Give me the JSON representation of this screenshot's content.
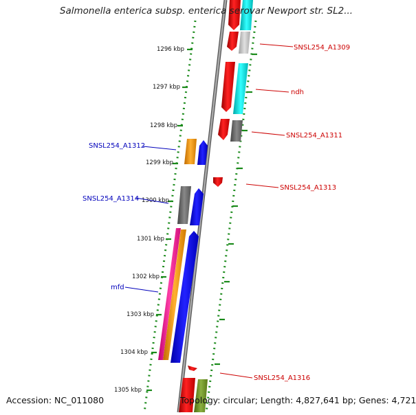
{
  "title": "Salmonella enterica subsp. enterica serovar Newport str. SL2...",
  "footer": {
    "accession": "Accession: NC_011080",
    "summary": "Topology: circular; Length: 4,827,641 bp; Genes: 4,721"
  },
  "scale_labels": [
    "1296 kbp",
    "1297 kbp",
    "1298 kbp",
    "1299 kbp",
    "1300 kbp",
    "1301 kbp",
    "1302 kbp",
    "1303 kbp",
    "1304 kbp",
    "1305 kbp"
  ],
  "gene_labels": {
    "a1309": "SNSL254_A1309",
    "ndh": "ndh",
    "a1311": "SNSL254_A1311",
    "a1313": "SNSL254_A1313",
    "a1316": "SNSL254_A1316",
    "a1312": "SNSL254_A1312",
    "a1314": "SNSL254_A1314",
    "mfd": "mfd"
  },
  "colors": {
    "red": "#ee0000",
    "cyan": "#00e0e0",
    "gray": "#666666",
    "light_gray": "#c0c0c0",
    "blue": "#0000ee",
    "orange": "#ff9900",
    "magenta": "#ff1493",
    "olive": "#6b8e23",
    "tick_green": "#1a8a1a",
    "backbone": "#888888"
  }
}
